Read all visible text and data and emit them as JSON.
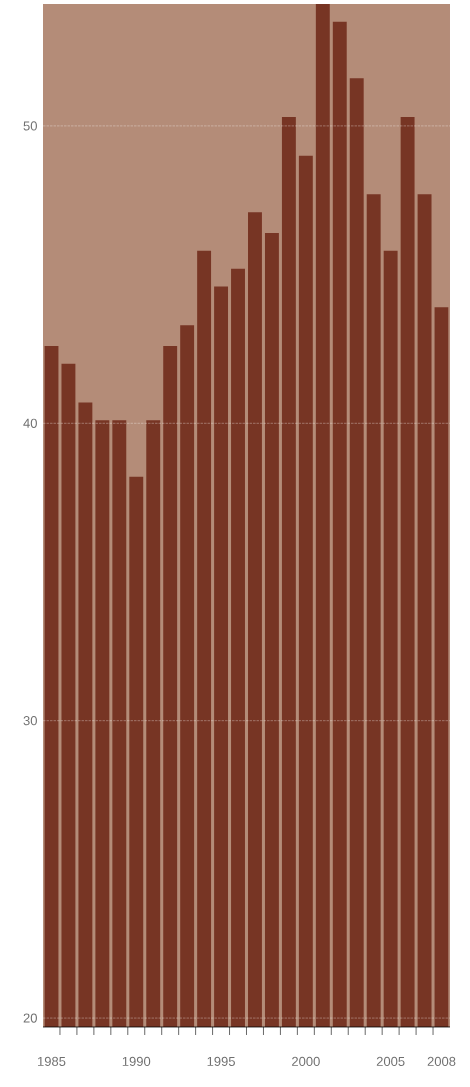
{
  "chart_data": {
    "type": "bar",
    "categories": [
      "1985",
      null,
      null,
      null,
      null,
      "1990",
      null,
      null,
      null,
      null,
      "1995",
      null,
      null,
      null,
      null,
      "2000",
      null,
      null,
      null,
      null,
      "2005",
      null,
      null,
      "2008"
    ],
    "values": [
      42.6,
      42.0,
      40.7,
      40.1,
      40.1,
      38.2,
      40.1,
      42.6,
      43.3,
      45.8,
      44.6,
      45.2,
      47.1,
      46.4,
      50.3,
      49.0,
      54.1,
      53.5,
      51.6,
      47.7,
      45.8,
      50.3,
      47.7,
      43.9
    ],
    "color": "#773524",
    "ylim": [
      19.7,
      54.1
    ],
    "yticks": [
      20,
      30,
      40,
      50
    ],
    "grid": "y"
  }
}
